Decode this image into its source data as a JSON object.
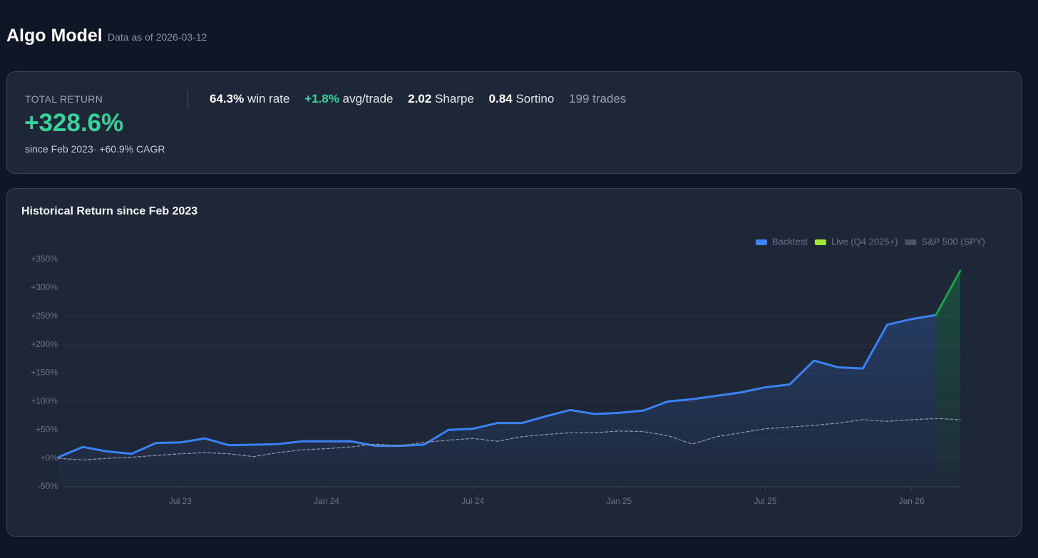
{
  "header": {
    "title": "Algo Model",
    "subtitle": "Data as of 2026-03-12"
  },
  "summary": {
    "label": "TOTAL RETURN",
    "value": "+328.6%",
    "note": "since Feb 2023· +60.9% CAGR",
    "stats": [
      {
        "value": "64.3%",
        "label": "win rate"
      },
      {
        "value": "+1.8%",
        "label": "avg/trade"
      },
      {
        "value": "2.02",
        "label": "Sharpe"
      },
      {
        "value": "0.84",
        "label": "Sortino"
      },
      {
        "label": "199 trades"
      }
    ]
  },
  "chart_data": {
    "type": "line",
    "title": "Historical Return since Feb 2023",
    "x": [
      "2023-02",
      "2023-03",
      "2023-04",
      "2023-05",
      "2023-06",
      "2023-07",
      "2023-08",
      "2023-09",
      "2023-10",
      "2023-11",
      "2023-12",
      "2024-01",
      "2024-02",
      "2024-03",
      "2024-04",
      "2024-05",
      "2024-06",
      "2024-07",
      "2024-08",
      "2024-09",
      "2024-10",
      "2024-11",
      "2024-12",
      "2025-01",
      "2025-02",
      "2025-03",
      "2025-04",
      "2025-05",
      "2025-06",
      "2025-07",
      "2025-08",
      "2025-09",
      "2025-10",
      "2025-11",
      "2025-12",
      "2026-01",
      "2026-02",
      "2026-03"
    ],
    "series": [
      {
        "name": "Backtest",
        "color": "#3b82f6",
        "fill": true,
        "values": [
          2,
          20,
          12,
          8,
          27,
          28,
          35,
          23,
          24,
          25,
          30,
          30,
          30,
          22,
          22,
          24,
          50,
          52,
          62,
          62,
          74,
          85,
          78,
          80,
          84,
          100,
          104,
          110,
          116,
          125,
          130,
          172,
          160,
          158,
          235,
          245,
          252,
          null
        ]
      },
      {
        "name": "Live (Q4 2025+)",
        "color": "#16a34a",
        "legend_color": "#a3e635",
        "fill": true,
        "values": [
          null,
          null,
          null,
          null,
          null,
          null,
          null,
          null,
          null,
          null,
          null,
          null,
          null,
          null,
          null,
          null,
          null,
          null,
          null,
          null,
          null,
          null,
          null,
          null,
          null,
          null,
          null,
          null,
          null,
          null,
          null,
          null,
          null,
          null,
          null,
          null,
          252,
          330
        ]
      },
      {
        "name": "S&P 500 (SPY)",
        "color": "#8a93a6",
        "legend_color": "#4b5368",
        "dashed": true,
        "values": [
          0,
          -3,
          0,
          2,
          5,
          8,
          10,
          8,
          3,
          10,
          15,
          17,
          20,
          25,
          22,
          28,
          32,
          35,
          30,
          38,
          42,
          45,
          45,
          48,
          47,
          40,
          25,
          38,
          45,
          52,
          55,
          58,
          62,
          68,
          65,
          68,
          70,
          68
        ]
      }
    ],
    "xlim": [
      "2023-02",
      "2026-03"
    ],
    "xticks": [
      {
        "value": "2023-07",
        "label": "Jul 23"
      },
      {
        "value": "2024-01",
        "label": "Jan 24"
      },
      {
        "value": "2024-07",
        "label": "Jul 24"
      },
      {
        "value": "2025-01",
        "label": "Jan 25"
      },
      {
        "value": "2025-07",
        "label": "Jul 25"
      },
      {
        "value": "2026-01",
        "label": "Jan 26"
      }
    ],
    "ylim": [
      -50,
      350
    ],
    "yticks": [
      {
        "value": -50,
        "label": "-50%"
      },
      {
        "value": 0,
        "label": "+0%"
      },
      {
        "value": 50,
        "label": "+50%"
      },
      {
        "value": 100,
        "label": "+100%"
      },
      {
        "value": 150,
        "label": "+150%"
      },
      {
        "value": 200,
        "label": "+200%"
      },
      {
        "value": 250,
        "label": "+250%"
      },
      {
        "value": 300,
        "label": "+300%"
      },
      {
        "value": 350,
        "label": "+350%"
      }
    ],
    "grid": true,
    "legend": "top-right"
  }
}
